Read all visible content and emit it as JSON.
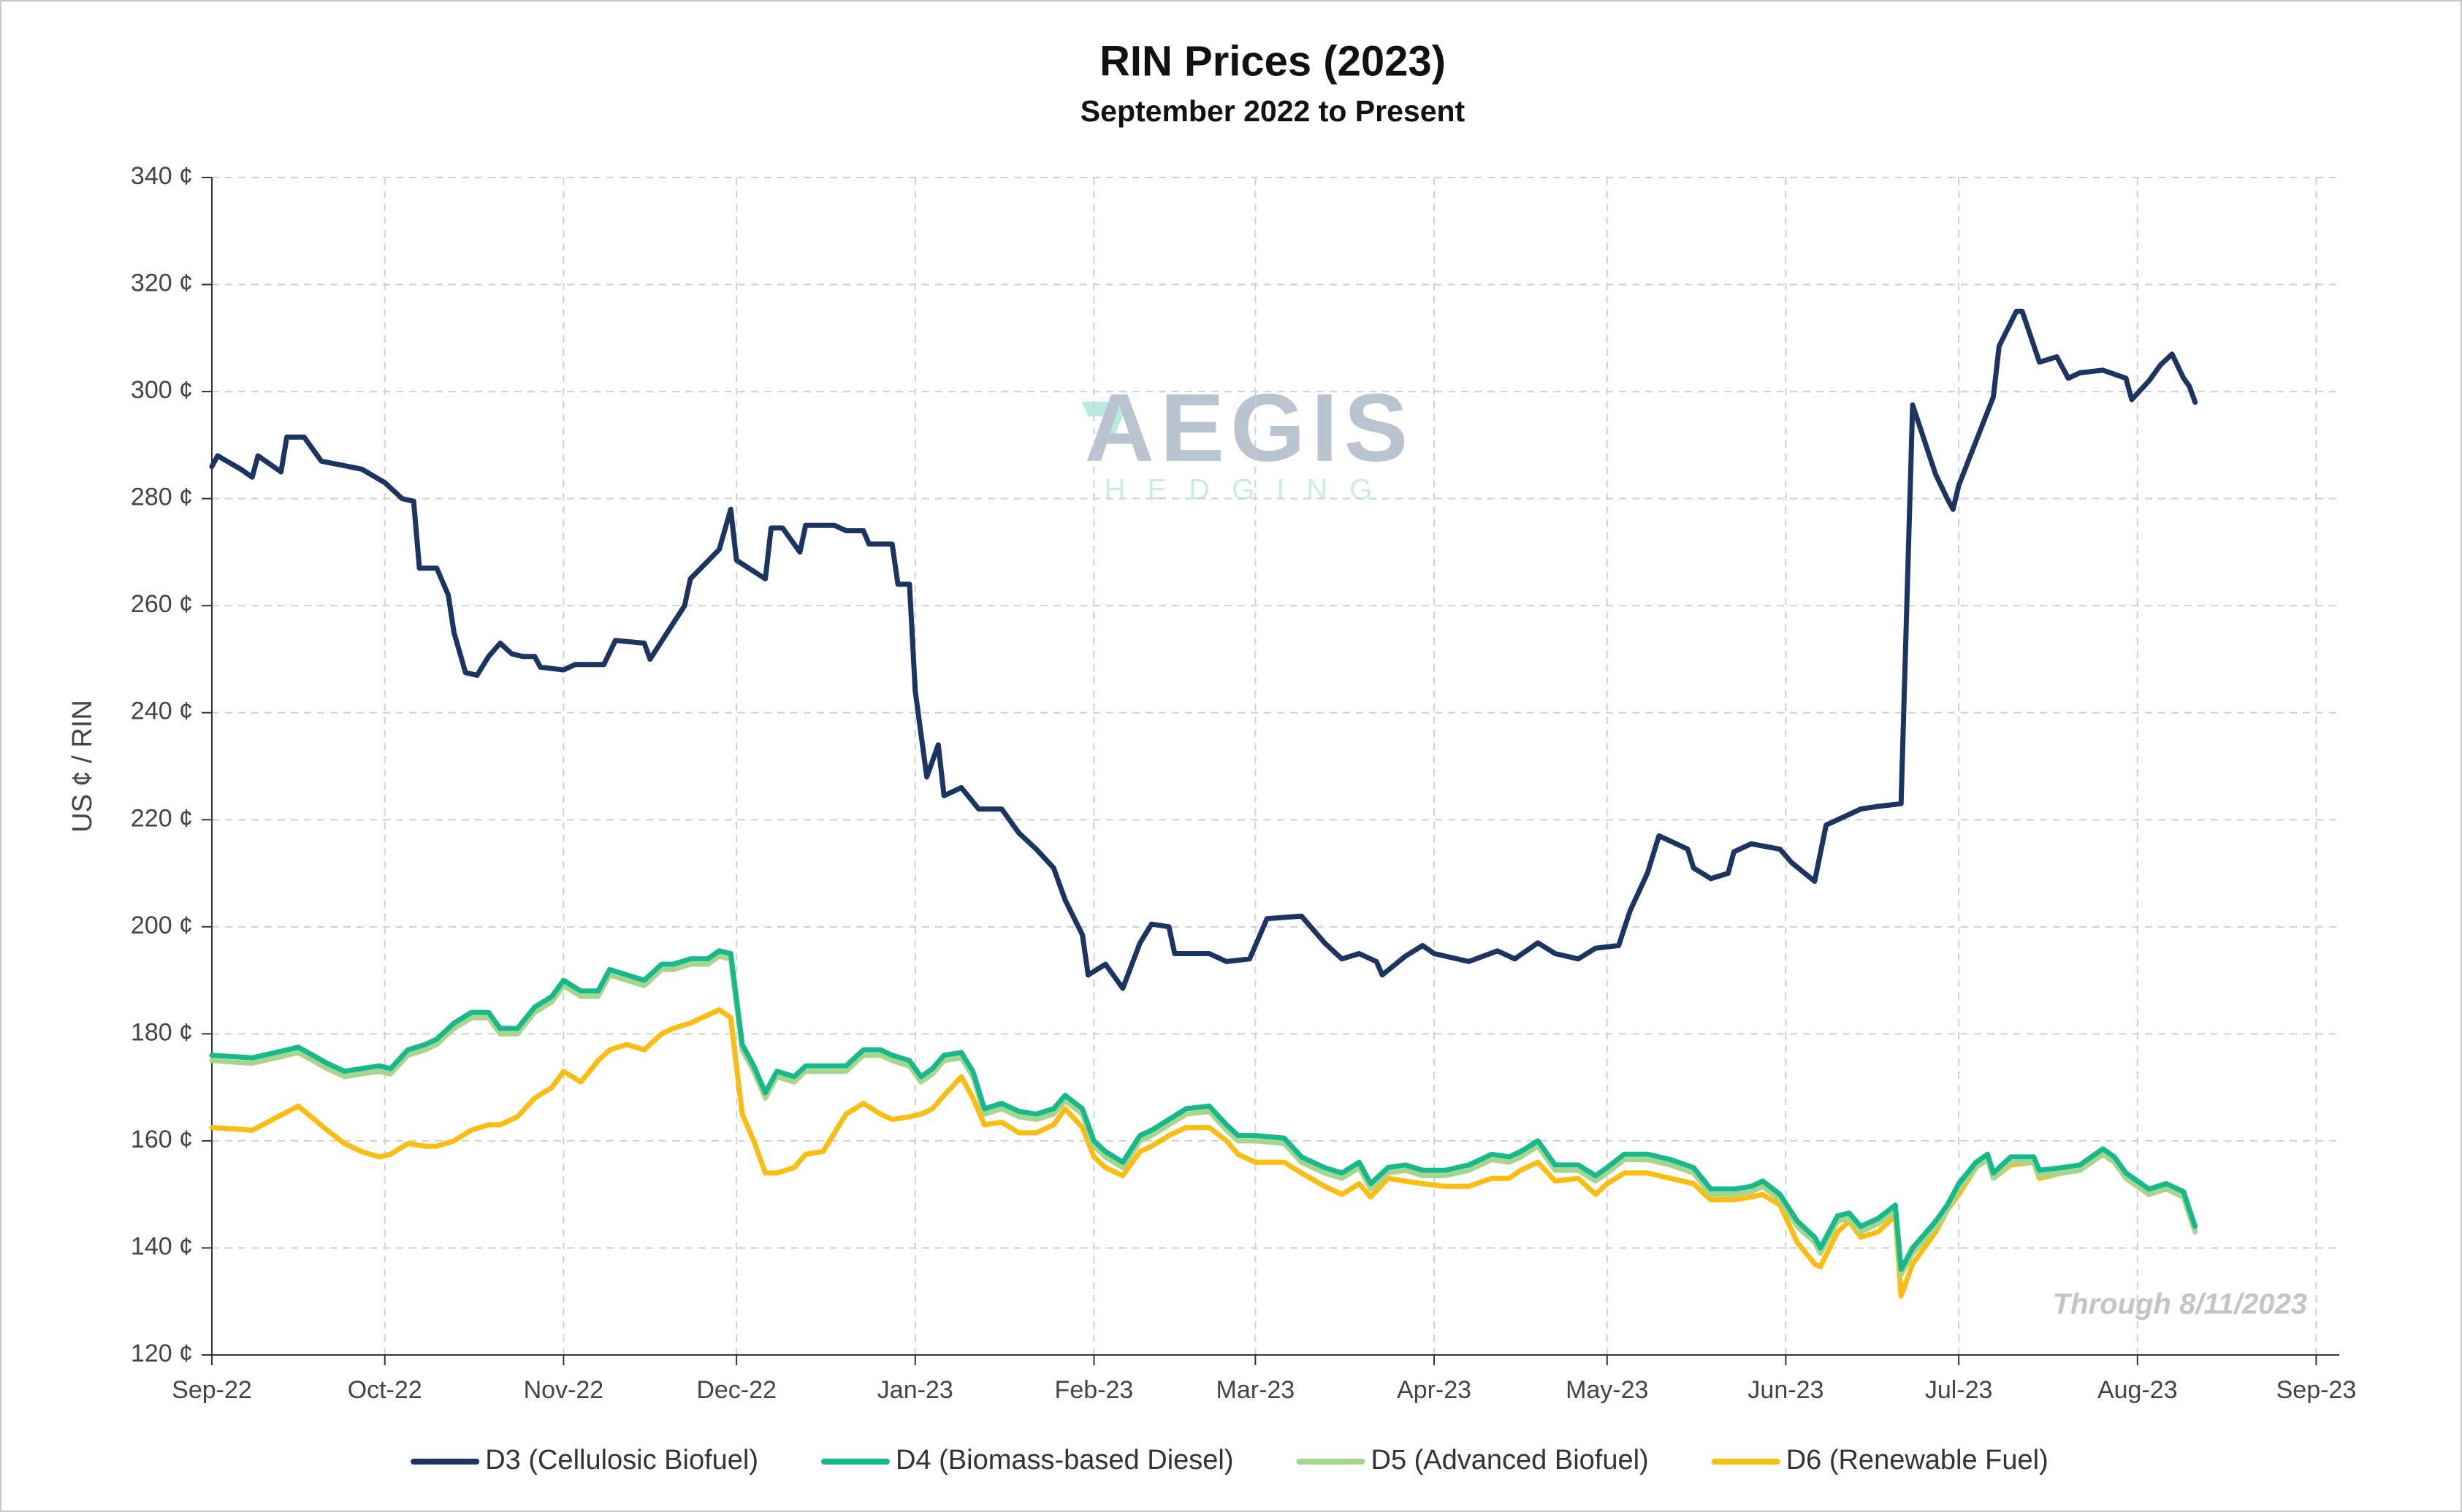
{
  "chart_data": {
    "type": "line",
    "title": "RIN Prices (2023)",
    "subtitle": "September 2022 to Present",
    "y_label": "US ¢ / RIN",
    "annotation": "Through 8/11/2023",
    "watermark": [
      "AEGIS",
      "HEDGING"
    ],
    "xlim": [
      0,
      369
    ],
    "xticks": [
      {
        "value": 0,
        "label": "Sep-22"
      },
      {
        "value": 30,
        "label": "Oct-22"
      },
      {
        "value": 61,
        "label": "Nov-22"
      },
      {
        "value": 91,
        "label": "Dec-22"
      },
      {
        "value": 122,
        "label": "Jan-23"
      },
      {
        "value": 153,
        "label": "Feb-23"
      },
      {
        "value": 181,
        "label": "Mar-23"
      },
      {
        "value": 212,
        "label": "Apr-23"
      },
      {
        "value": 242,
        "label": "May-23"
      },
      {
        "value": 273,
        "label": "Jun-23"
      },
      {
        "value": 303,
        "label": "Jul-23"
      },
      {
        "value": 334,
        "label": "Aug-23"
      },
      {
        "value": 365,
        "label": "Sep-23"
      }
    ],
    "ylim": [
      120,
      340
    ],
    "yticks": [
      {
        "value": 120,
        "label": "120 ¢"
      },
      {
        "value": 140,
        "label": "140 ¢"
      },
      {
        "value": 160,
        "label": "160 ¢"
      },
      {
        "value": 180,
        "label": "180 ¢"
      },
      {
        "value": 200,
        "label": "200 ¢"
      },
      {
        "value": 220,
        "label": "220 ¢"
      },
      {
        "value": 240,
        "label": "240 ¢"
      },
      {
        "value": 260,
        "label": "260 ¢"
      },
      {
        "value": 280,
        "label": "280 ¢"
      },
      {
        "value": 300,
        "label": "300 ¢"
      },
      {
        "value": 320,
        "label": "320 ¢"
      },
      {
        "value": 340,
        "label": "340 ¢"
      }
    ],
    "grid": true,
    "legend": "bottom",
    "series": [
      {
        "name": "D3 (Cellulosic Biofuel)",
        "color": "#1c3461",
        "x": [
          0,
          1,
          5,
          7,
          8,
          12,
          13,
          16,
          19,
          26,
          30,
          33,
          35,
          36,
          39,
          41,
          42,
          44,
          46,
          48,
          50,
          52,
          54,
          56,
          57,
          61,
          63,
          68,
          70,
          75,
          76,
          79,
          82,
          83,
          88,
          90,
          91,
          96,
          97,
          99,
          102,
          103,
          108,
          110,
          113,
          114,
          118,
          119,
          121,
          122,
          124,
          126,
          127,
          130,
          133,
          137,
          140,
          143,
          146,
          148,
          151,
          152,
          155,
          158,
          161,
          163,
          166,
          167,
          173,
          176,
          180,
          181,
          183,
          189,
          193,
          196,
          199,
          202,
          203,
          207,
          210,
          212,
          218,
          223,
          226,
          230,
          233,
          237,
          240,
          244,
          246,
          249,
          251,
          253,
          256,
          257,
          260,
          263,
          264,
          267,
          272,
          274,
          278,
          280,
          286,
          289,
          293,
          295,
          299,
          301,
          302,
          303,
          309,
          310,
          313,
          314,
          317,
          320,
          322,
          324,
          328,
          332,
          333,
          336,
          338,
          340,
          342,
          343,
          344
        ],
        "values": [
          286,
          288,
          285.5,
          284,
          288,
          285,
          291.5,
          291.5,
          287,
          285.5,
          283,
          280,
          279.5,
          267,
          267,
          262,
          255,
          247.5,
          247,
          250.5,
          253,
          251,
          250.5,
          250.5,
          248.5,
          248,
          249,
          249,
          253.5,
          253,
          250,
          255,
          260,
          265,
          270.5,
          278,
          268.5,
          265,
          274.5,
          274.5,
          270,
          275,
          275,
          274,
          274,
          271.5,
          271.5,
          264,
          264,
          244,
          228,
          234,
          224.5,
          226,
          222,
          222,
          217.5,
          214.5,
          211,
          205,
          198.5,
          191,
          193,
          188.5,
          197,
          200.5,
          200,
          195,
          195,
          193.5,
          194,
          196.5,
          201.5,
          202,
          197,
          194,
          195,
          193.5,
          191,
          194.5,
          196.5,
          195,
          193.5,
          195.5,
          194,
          197,
          195,
          194,
          196,
          196.5,
          203,
          210,
          217,
          216,
          214.5,
          211,
          209,
          210,
          214,
          215.5,
          214.5,
          212,
          208.5,
          219,
          222,
          222.5,
          223,
          297.5,
          284.5,
          280,
          278,
          282.5,
          299,
          308.5,
          315,
          315,
          305.5,
          306.5,
          302.5,
          303.5,
          304,
          302.5,
          298.5,
          302,
          305,
          307,
          302.5,
          301,
          298
        ]
      },
      {
        "name": "D4 (Biomass-based Diesel)",
        "color": "#17b98b",
        "x": [
          0,
          7,
          15,
          20,
          23,
          26,
          29,
          31,
          34,
          37,
          39,
          42,
          45,
          48,
          50,
          53,
          56,
          59,
          61,
          64,
          67,
          69,
          72,
          75,
          78,
          80,
          83,
          86,
          88,
          90,
          92,
          94,
          96,
          98,
          101,
          103,
          106,
          110,
          113,
          116,
          118,
          121,
          123,
          125,
          127,
          130,
          132,
          134,
          137,
          140,
          143,
          146,
          148,
          151,
          153,
          155,
          158,
          161,
          163,
          166,
          169,
          173,
          176,
          178,
          181,
          186,
          189,
          193,
          196,
          199,
          201,
          204,
          207,
          210,
          214,
          218,
          222,
          225,
          227,
          230,
          233,
          237,
          240,
          242,
          245,
          249,
          253,
          257,
          260,
          264,
          267,
          269,
          272,
          275,
          278,
          279,
          282,
          284,
          286,
          289,
          292,
          293,
          295,
          299,
          301,
          303,
          306,
          308,
          309,
          312,
          316,
          317,
          321,
          324,
          328,
          330,
          332,
          336,
          339,
          342,
          344
        ],
        "values": [
          176,
          175.5,
          177.5,
          174.5,
          173,
          173.5,
          174,
          173.5,
          177,
          178,
          179,
          182,
          184,
          184,
          181,
          181,
          185,
          187,
          190,
          188,
          188,
          192,
          191,
          190,
          193,
          193,
          194,
          194,
          195.5,
          195,
          178,
          174,
          169,
          173,
          172,
          174,
          174,
          174,
          177,
          177,
          176,
          175,
          172,
          173.5,
          176,
          176.5,
          173,
          166,
          167,
          165.5,
          165,
          166,
          168.5,
          166,
          160,
          158,
          156,
          161,
          162,
          164,
          166,
          166.5,
          163,
          161,
          161,
          160.5,
          157,
          155,
          154,
          156,
          152,
          155,
          155.5,
          154.5,
          154.5,
          155.5,
          157.5,
          157,
          158,
          160,
          155.5,
          155.5,
          153.5,
          155,
          157.5,
          157.5,
          156.5,
          155,
          151,
          151,
          151.5,
          152.5,
          150,
          145,
          142,
          140,
          146,
          146.5,
          144,
          145.5,
          148,
          136,
          140,
          145,
          148,
          152,
          156,
          157.5,
          154,
          157,
          157,
          154.5,
          155,
          155.5,
          158.5,
          157,
          154,
          151,
          152,
          150.5,
          144
        ]
      },
      {
        "name": "D5 (Advanced Biofuel)",
        "color": "#a8d58e",
        "x": [
          0,
          7,
          15,
          20,
          23,
          26,
          29,
          31,
          34,
          37,
          39,
          42,
          45,
          48,
          50,
          53,
          56,
          59,
          61,
          64,
          67,
          69,
          72,
          75,
          78,
          80,
          83,
          86,
          88,
          90,
          92,
          94,
          96,
          98,
          101,
          103,
          106,
          110,
          113,
          116,
          118,
          121,
          123,
          125,
          127,
          130,
          132,
          134,
          137,
          140,
          143,
          146,
          148,
          151,
          153,
          155,
          158,
          161,
          163,
          166,
          169,
          173,
          176,
          178,
          181,
          186,
          189,
          193,
          196,
          199,
          201,
          204,
          207,
          210,
          214,
          218,
          222,
          225,
          227,
          230,
          233,
          237,
          240,
          242,
          245,
          249,
          253,
          257,
          260,
          264,
          267,
          269,
          272,
          275,
          278,
          279,
          282,
          284,
          286,
          289,
          292,
          293,
          295,
          299,
          301,
          303,
          306,
          308,
          309,
          312,
          316,
          317,
          321,
          324,
          328,
          330,
          332,
          336,
          339,
          342,
          344
        ],
        "values": [
          175,
          174.5,
          176.5,
          173.5,
          172,
          172.5,
          173,
          172.5,
          176,
          177,
          178,
          181,
          183,
          183,
          180,
          180,
          184,
          186,
          189,
          187,
          187,
          191,
          190,
          189,
          192,
          192,
          193,
          193,
          194.5,
          194,
          177,
          173,
          168,
          172,
          171,
          173,
          173,
          173,
          176,
          176,
          175,
          174,
          171,
          172.5,
          175,
          175.5,
          172,
          165,
          166,
          164.5,
          164,
          165,
          167.5,
          165,
          159,
          157,
          155,
          160,
          161,
          163,
          165,
          165.5,
          162,
          160,
          160,
          159.5,
          156,
          154,
          153,
          155,
          151,
          154,
          154.5,
          153.5,
          153.5,
          154.5,
          156.5,
          156,
          157,
          159,
          154.5,
          154.5,
          152.5,
          154,
          156.5,
          156.5,
          155.5,
          154,
          150,
          150,
          150.5,
          151.5,
          149,
          144,
          141,
          139,
          145,
          145.5,
          143,
          144.5,
          147,
          135,
          139,
          144,
          147,
          151,
          155,
          156.5,
          153,
          156,
          156,
          153.5,
          154,
          154.5,
          157.5,
          156,
          153,
          150,
          151,
          149.5,
          143
        ]
      },
      {
        "name": "D6 (Renewable Fuel)",
        "color": "#fbbd12",
        "x": [
          0,
          7,
          15,
          20,
          23,
          26,
          29,
          31,
          34,
          37,
          39,
          42,
          45,
          48,
          50,
          53,
          56,
          59,
          61,
          64,
          67,
          69,
          72,
          75,
          78,
          80,
          83,
          86,
          88,
          90,
          92,
          94,
          96,
          98,
          101,
          103,
          106,
          110,
          113,
          116,
          118,
          121,
          123,
          125,
          127,
          130,
          132,
          134,
          137,
          140,
          143,
          146,
          148,
          151,
          153,
          155,
          158,
          161,
          163,
          166,
          169,
          173,
          176,
          178,
          181,
          186,
          189,
          193,
          196,
          199,
          201,
          204,
          207,
          210,
          214,
          218,
          222,
          225,
          227,
          230,
          233,
          237,
          240,
          242,
          245,
          249,
          253,
          257,
          260,
          264,
          267,
          269,
          272,
          275,
          278,
          279,
          282,
          284,
          286,
          289,
          292,
          293,
          295,
          299,
          301,
          303,
          306,
          308,
          309,
          312,
          316,
          317,
          321,
          324,
          328,
          330,
          332,
          336,
          339,
          342,
          344
        ],
        "values": [
          162.5,
          162,
          166.5,
          162,
          159.5,
          158,
          157,
          157.5,
          159.5,
          159,
          159,
          160,
          162,
          163,
          163,
          164.5,
          168,
          170,
          173,
          171,
          175,
          177,
          178,
          177,
          180,
          181,
          182,
          183.5,
          184.5,
          183,
          165,
          160,
          154,
          154,
          155,
          157.5,
          158,
          165,
          167,
          165,
          164,
          164.5,
          165,
          166,
          168.5,
          172,
          168,
          163,
          163.5,
          161.5,
          161.5,
          163,
          166,
          162.5,
          157,
          155,
          153.5,
          158,
          159,
          161,
          162.5,
          162.5,
          160,
          157.5,
          156,
          156,
          154,
          151.5,
          150,
          152,
          149.5,
          153,
          152.5,
          152,
          151.5,
          151.5,
          153,
          153,
          154.5,
          156,
          152.5,
          153,
          150,
          152,
          154,
          154,
          153,
          152,
          149,
          149,
          149.5,
          150,
          148,
          141,
          137,
          136.5,
          143,
          145,
          142,
          143,
          146,
          131,
          137,
          143,
          147,
          150,
          155,
          157,
          153,
          155.5,
          156,
          153,
          154,
          154.5,
          157.5,
          156,
          153,
          150,
          151.5,
          149.5,
          143
        ]
      }
    ]
  }
}
